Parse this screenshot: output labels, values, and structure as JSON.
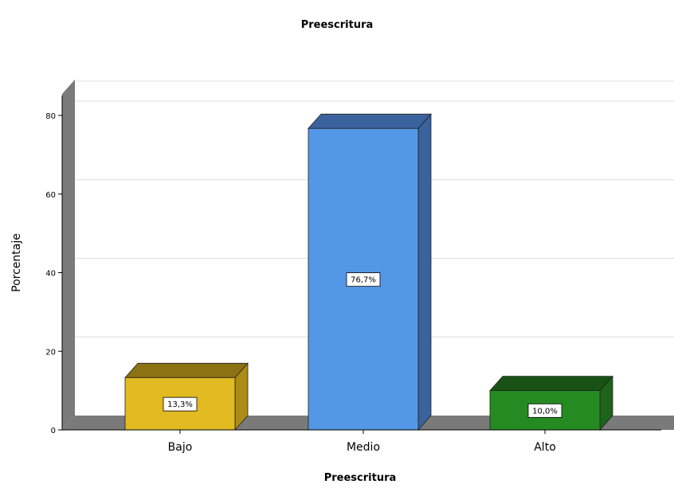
{
  "chart_data": {
    "type": "bar",
    "title": "Preescritura",
    "xlabel": "Preescritura",
    "ylabel": "Porcentaje",
    "categories": [
      "Bajo",
      "Medio",
      "Alto"
    ],
    "values": [
      13.3,
      76.7,
      10.0
    ],
    "data_labels": [
      "13,3%",
      "76,7%",
      "10,0%"
    ],
    "yticks": [
      "0",
      "20",
      "40",
      "60",
      "80"
    ],
    "ylim": [
      0,
      80
    ],
    "grid": true,
    "colors": {
      "front": [
        "#e2ba21",
        "#5497e6",
        "#268a23"
      ],
      "top": [
        "#8c7212",
        "#3a639e",
        "#185215"
      ],
      "side": [
        "#aa8c17",
        "#3a629c",
        "#1b641a"
      ]
    }
  }
}
